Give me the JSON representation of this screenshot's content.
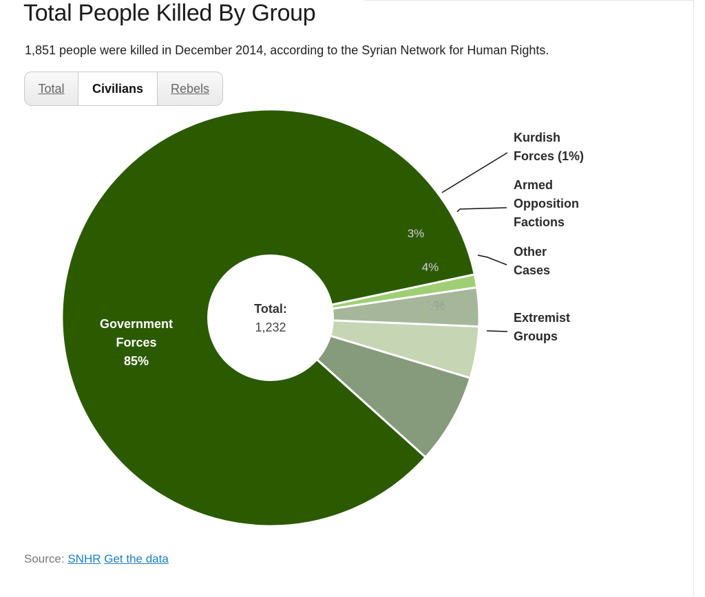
{
  "title": "Total People Killed By Group",
  "subtitle": "1,851 people were killed in December 2014, according to the Syrian Network for Human Rights.",
  "tabs": [
    {
      "label": "Total",
      "active": false
    },
    {
      "label": "Civilians",
      "active": true
    },
    {
      "label": "Rebels",
      "active": false
    }
  ],
  "chart_data": {
    "type": "pie",
    "center_label": "Total:",
    "center_value": "1,232",
    "slices": [
      {
        "name": [
          "Government",
          "Forces"
        ],
        "value": 85,
        "label": "85%",
        "color": "#2b5a00",
        "label_inside": true
      },
      {
        "name": [
          "Extremist",
          "Groups"
        ],
        "value": 7,
        "label": "7%",
        "color": "#869a7c"
      },
      {
        "name": [
          "Other",
          "Cases"
        ],
        "value": 4,
        "label": "4%",
        "color": "#c6d5b4"
      },
      {
        "name": [
          "Armed",
          "Opposition",
          "Factions"
        ],
        "value": 3,
        "label": "3%",
        "color": "#a6b69a"
      },
      {
        "name": [
          "Kurdish",
          "Forces (1%)"
        ],
        "value": 1,
        "label": "",
        "color": "#9ecf75"
      }
    ]
  },
  "source": {
    "prefix": "Source:",
    "link1": "SNHR",
    "link2": "Get the data"
  }
}
